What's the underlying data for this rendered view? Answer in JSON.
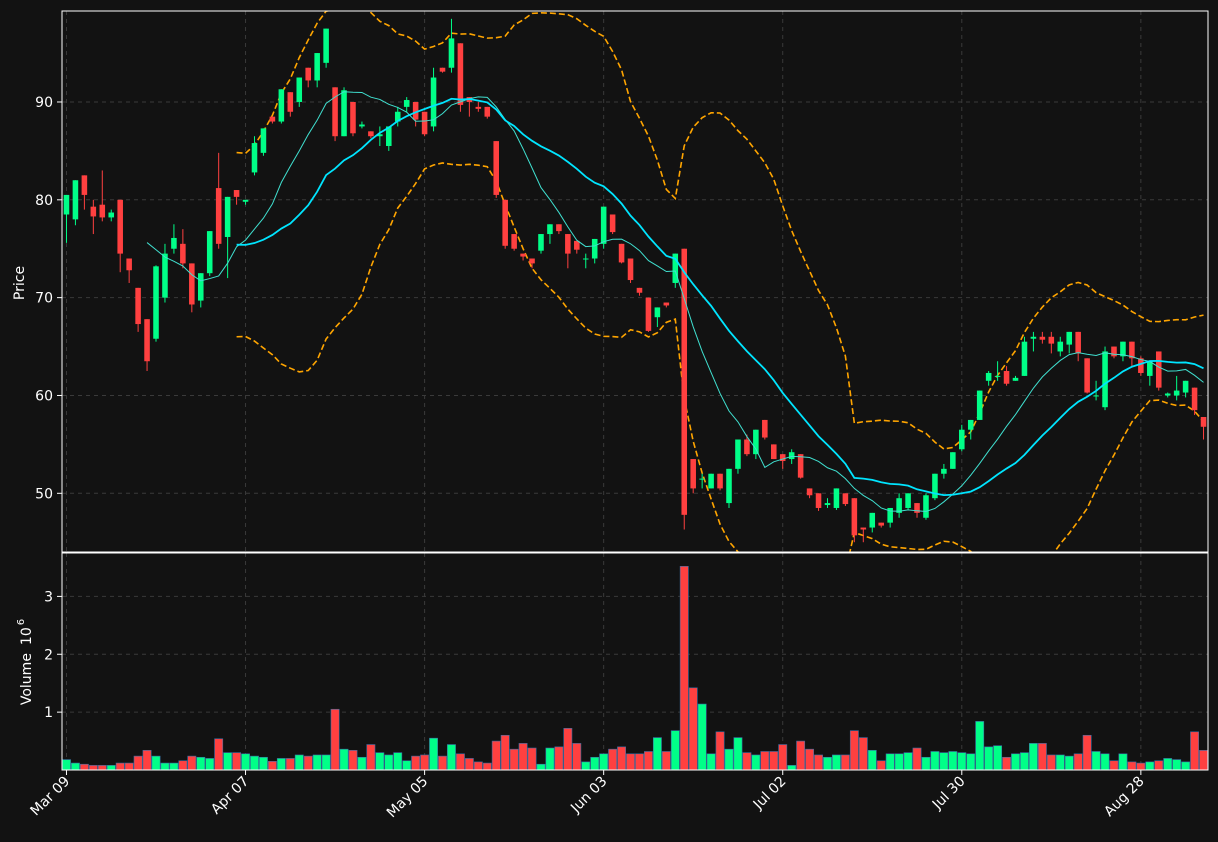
{
  "chart_data": {
    "type": "candlestick",
    "ylabel_price": "Price",
    "ylabel_volume": "Volume",
    "volume_exponent_label": "10",
    "volume_exponent_power": "6",
    "price_ylim": [
      44,
      99.3
    ],
    "volume_ylim": [
      0,
      3.75
    ],
    "price_ticks": [
      50,
      60,
      70,
      80,
      90
    ],
    "volume_ticks": [
      1,
      2,
      3
    ],
    "x_ticks": [
      {
        "i": 0,
        "label": "Mar 09"
      },
      {
        "i": 20,
        "label": "Apr 07"
      },
      {
        "i": 40,
        "label": "May 05"
      },
      {
        "i": 60,
        "label": "Jun 03"
      },
      {
        "i": 80,
        "label": "Jul 02"
      },
      {
        "i": 100,
        "label": "Jul 30"
      },
      {
        "i": 120,
        "label": "Aug 28"
      }
    ],
    "grid": true,
    "colors": {
      "background": "#121212",
      "up": "#00ff88",
      "down": "#ff4040",
      "ma_fast": "#40e0d0",
      "ma_slow": "#00e5ff",
      "bollinger": "#ffa500",
      "grid": "#3a3a3a",
      "frame": "#ffffff"
    },
    "ohlc": [
      [
        78.5,
        80.5,
        75.6,
        80.5
      ],
      [
        78.0,
        82.0,
        77.4,
        82.0
      ],
      [
        82.5,
        82.5,
        79.0,
        80.5
      ],
      [
        79.3,
        80.0,
        76.5,
        78.3
      ],
      [
        79.5,
        83.0,
        77.8,
        78.2
      ],
      [
        78.2,
        79.0,
        77.8,
        78.7
      ],
      [
        80.0,
        80.0,
        72.6,
        74.5
      ],
      [
        74.0,
        74.0,
        71.5,
        72.8
      ],
      [
        71.0,
        71.0,
        66.5,
        67.3
      ],
      [
        67.8,
        67.8,
        62.5,
        63.5
      ],
      [
        65.8,
        73.3,
        65.5,
        73.2
      ],
      [
        70.0,
        75.5,
        69.5,
        74.5
      ],
      [
        75.0,
        77.5,
        74.5,
        76.1
      ],
      [
        75.5,
        77.0,
        73.0,
        73.5
      ],
      [
        73.5,
        73.5,
        68.5,
        69.3
      ],
      [
        69.7,
        72.5,
        69.0,
        72.5
      ],
      [
        72.5,
        76.8,
        72.2,
        76.8
      ],
      [
        81.2,
        84.8,
        75.0,
        75.5
      ],
      [
        76.2,
        80.3,
        72.0,
        80.3
      ],
      [
        81.0,
        81.0,
        79.5,
        80.3
      ],
      [
        79.8,
        80.0,
        79.5,
        80.0
      ],
      [
        82.8,
        86.5,
        82.5,
        85.8
      ],
      [
        84.8,
        87.3,
        84.5,
        87.3
      ],
      [
        88.5,
        88.5,
        87.8,
        88.0
      ],
      [
        88.0,
        91.3,
        87.8,
        91.3
      ],
      [
        91.0,
        91.0,
        88.5,
        89.0
      ],
      [
        90.0,
        92.5,
        89.5,
        92.5
      ],
      [
        93.5,
        93.5,
        91.5,
        92.2
      ],
      [
        92.2,
        95.0,
        91.5,
        95.0
      ],
      [
        94.0,
        97.5,
        93.5,
        97.5
      ],
      [
        91.5,
        91.5,
        86.0,
        86.5
      ],
      [
        86.5,
        91.5,
        86.5,
        91.2
      ],
      [
        90.0,
        90.0,
        86.5,
        86.8
      ],
      [
        87.5,
        88.0,
        87.3,
        87.7
      ],
      [
        87.0,
        87.0,
        86.3,
        86.5
      ],
      [
        86.5,
        87.5,
        85.5,
        86.7
      ],
      [
        85.5,
        87.5,
        85.0,
        87.5
      ],
      [
        88.0,
        89.5,
        87.5,
        89.0
      ],
      [
        89.5,
        90.5,
        89.0,
        90.2
      ],
      [
        90.0,
        90.0,
        87.5,
        88.2
      ],
      [
        89.0,
        89.0,
        86.5,
        86.7
      ],
      [
        87.5,
        93.5,
        87.0,
        92.5
      ],
      [
        93.5,
        93.5,
        93.0,
        93.1
      ],
      [
        93.5,
        98.5,
        93.0,
        96.5
      ],
      [
        96.0,
        96.0,
        89.0,
        89.7
      ],
      [
        90.5,
        90.5,
        88.5,
        90.0
      ],
      [
        89.5,
        90.0,
        89.0,
        89.3
      ],
      [
        89.5,
        89.5,
        88.3,
        88.5
      ],
      [
        86.0,
        86.0,
        80.2,
        80.5
      ],
      [
        80.0,
        80.0,
        75.0,
        75.3
      ],
      [
        76.5,
        76.5,
        74.8,
        75.0
      ],
      [
        74.5,
        74.5,
        73.8,
        74.2
      ],
      [
        74.0,
        74.0,
        73.0,
        73.5
      ],
      [
        74.8,
        76.5,
        74.5,
        76.5
      ],
      [
        76.5,
        77.5,
        75.5,
        77.5
      ],
      [
        77.5,
        77.5,
        76.5,
        76.8
      ],
      [
        76.5,
        76.5,
        73.0,
        74.5
      ],
      [
        75.8,
        75.8,
        74.5,
        74.9
      ],
      [
        74.0,
        74.5,
        73.0,
        74.0
      ],
      [
        74.0,
        76.0,
        73.5,
        76.0
      ],
      [
        75.5,
        79.3,
        75.0,
        79.3
      ],
      [
        78.5,
        78.5,
        76.5,
        76.7
      ],
      [
        75.5,
        75.5,
        73.5,
        73.6
      ],
      [
        74.0,
        74.0,
        71.5,
        71.8
      ],
      [
        71.0,
        71.0,
        70.2,
        70.5
      ],
      [
        70.0,
        70.0,
        66.5,
        66.6
      ],
      [
        68.0,
        69.0,
        67.0,
        69.0
      ],
      [
        69.5,
        69.5,
        69.0,
        69.2
      ],
      [
        71.5,
        74.5,
        71.0,
        74.5
      ],
      [
        75.0,
        75.0,
        46.3,
        47.8
      ],
      [
        53.5,
        53.5,
        50.0,
        50.5
      ],
      [
        51.5,
        52.0,
        50.5,
        51.5
      ],
      [
        50.5,
        52.0,
        50.5,
        52.0
      ],
      [
        52.0,
        52.0,
        50.3,
        50.5
      ],
      [
        49.0,
        52.5,
        48.5,
        52.5
      ],
      [
        52.5,
        55.5,
        52.0,
        55.5
      ],
      [
        55.5,
        56.0,
        53.8,
        54.0
      ],
      [
        54.0,
        56.5,
        53.5,
        56.5
      ],
      [
        57.5,
        57.5,
        55.5,
        55.7
      ],
      [
        55.0,
        55.0,
        53.5,
        53.5
      ],
      [
        54.0,
        54.0,
        52.5,
        53.3
      ],
      [
        53.5,
        54.5,
        53.0,
        54.2
      ],
      [
        54.0,
        54.0,
        51.5,
        51.6
      ],
      [
        50.5,
        50.5,
        49.5,
        49.8
      ],
      [
        50.0,
        50.0,
        48.2,
        48.5
      ],
      [
        48.8,
        49.5,
        48.5,
        49.0
      ],
      [
        48.5,
        50.5,
        48.3,
        50.5
      ],
      [
        50.0,
        50.0,
        48.7,
        48.9
      ],
      [
        49.5,
        49.5,
        45.0,
        45.7
      ],
      [
        46.5,
        46.5,
        45.0,
        46.3
      ],
      [
        46.5,
        48.0,
        46.0,
        48.0
      ],
      [
        47.0,
        47.0,
        46.5,
        46.7
      ],
      [
        47.0,
        48.5,
        46.5,
        48.5
      ],
      [
        48.0,
        50.0,
        47.5,
        49.5
      ],
      [
        48.5,
        50.0,
        48.3,
        50.0
      ],
      [
        49.0,
        49.0,
        47.5,
        48.0
      ],
      [
        47.5,
        50.0,
        47.3,
        49.8
      ],
      [
        49.5,
        52.0,
        49.3,
        52.0
      ],
      [
        52.0,
        53.0,
        51.5,
        52.5
      ],
      [
        52.5,
        54.2,
        52.5,
        54.2
      ],
      [
        54.5,
        57.0,
        54.3,
        56.5
      ],
      [
        56.5,
        57.5,
        55.5,
        57.5
      ],
      [
        57.5,
        60.5,
        57.5,
        60.5
      ],
      [
        61.5,
        62.5,
        61.0,
        62.3
      ],
      [
        62.0,
        63.5,
        61.5,
        62.0
      ],
      [
        62.5,
        63.0,
        61.0,
        61.2
      ],
      [
        61.5,
        62.0,
        61.5,
        61.8
      ],
      [
        62.0,
        66.0,
        62.0,
        65.5
      ],
      [
        65.8,
        66.5,
        64.5,
        66.0
      ],
      [
        66.0,
        66.5,
        65.3,
        65.7
      ],
      [
        66.0,
        66.5,
        64.3,
        65.3
      ],
      [
        64.5,
        66.0,
        64.0,
        65.5
      ],
      [
        65.2,
        66.5,
        64.3,
        66.5
      ],
      [
        66.5,
        66.5,
        63.5,
        64.3
      ],
      [
        63.8,
        63.8,
        60.2,
        60.3
      ],
      [
        60.0,
        61.5,
        59.5,
        60.0
      ],
      [
        58.8,
        65.0,
        58.5,
        64.5
      ],
      [
        65.0,
        65.0,
        63.8,
        64.0
      ],
      [
        64.0,
        65.5,
        63.5,
        65.5
      ],
      [
        65.5,
        65.5,
        63.0,
        63.8
      ],
      [
        63.8,
        64.0,
        62.0,
        62.3
      ],
      [
        62.0,
        63.5,
        61.0,
        63.5
      ],
      [
        64.5,
        64.5,
        60.5,
        60.8
      ],
      [
        60.0,
        60.3,
        59.8,
        60.2
      ],
      [
        60.0,
        62.0,
        59.5,
        60.5
      ],
      [
        60.3,
        61.5,
        59.8,
        61.5
      ],
      [
        60.8,
        60.8,
        58.0,
        58.5
      ],
      [
        57.8,
        57.8,
        55.5,
        56.8
      ]
    ],
    "volume_millions": [
      0.18,
      0.12,
      0.1,
      0.08,
      0.08,
      0.08,
      0.12,
      0.12,
      0.24,
      0.34,
      0.24,
      0.12,
      0.12,
      0.16,
      0.24,
      0.22,
      0.2,
      0.54,
      0.3,
      0.3,
      0.28,
      0.24,
      0.22,
      0.15,
      0.2,
      0.2,
      0.26,
      0.24,
      0.26,
      0.26,
      1.05,
      0.36,
      0.34,
      0.22,
      0.44,
      0.3,
      0.26,
      0.3,
      0.16,
      0.24,
      0.26,
      0.55,
      0.24,
      0.44,
      0.28,
      0.2,
      0.14,
      0.12,
      0.5,
      0.6,
      0.36,
      0.46,
      0.38,
      0.1,
      0.38,
      0.4,
      0.72,
      0.46,
      0.14,
      0.22,
      0.28,
      0.36,
      0.4,
      0.28,
      0.28,
      0.32,
      0.56,
      0.32,
      0.68,
      3.52,
      1.42,
      1.14,
      0.28,
      0.66,
      0.36,
      0.56,
      0.3,
      0.26,
      0.32,
      0.32,
      0.44,
      0.08,
      0.5,
      0.36,
      0.26,
      0.22,
      0.26,
      0.26,
      0.68,
      0.56,
      0.34,
      0.16,
      0.28,
      0.28,
      0.3,
      0.38,
      0.22,
      0.32,
      0.3,
      0.32,
      0.3,
      0.28,
      0.84,
      0.4,
      0.42,
      0.22,
      0.28,
      0.3,
      0.46,
      0.46,
      0.26,
      0.26,
      0.24,
      0.28,
      0.6,
      0.32,
      0.28,
      0.16,
      0.28,
      0.14,
      0.12,
      0.14,
      0.16,
      0.2,
      0.18,
      0.14,
      0.66,
      0.34
    ]
  }
}
